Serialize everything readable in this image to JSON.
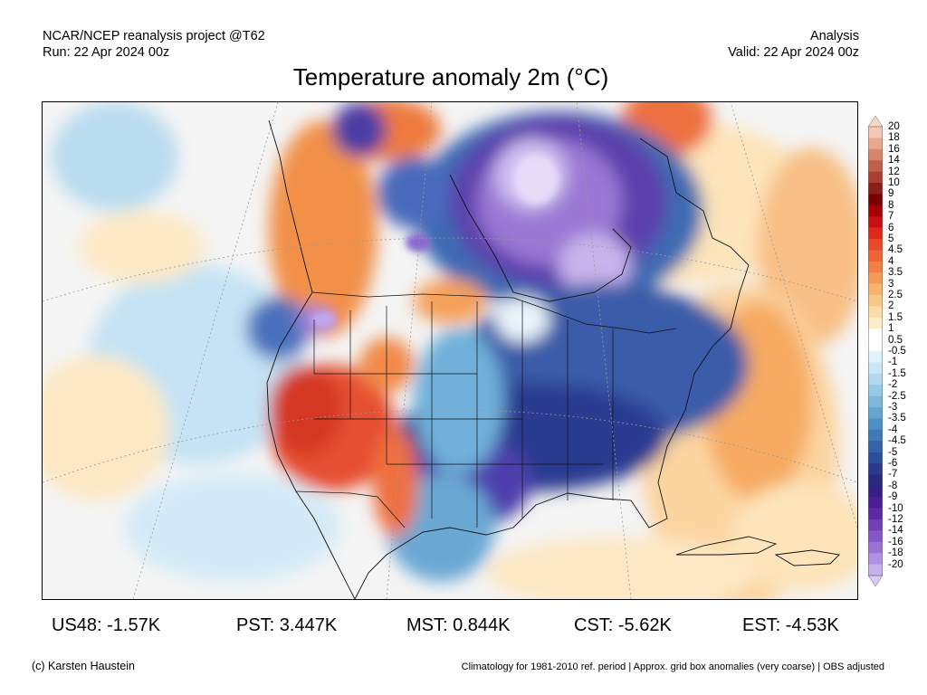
{
  "header": {
    "left_line1": "NCAR/NCEP reanalysis project @T62",
    "left_line2": "Run: 22 Apr 2024 00z",
    "right_line1": "Analysis",
    "right_line2": "Valid: 22 Apr 2024 00z"
  },
  "title": "Temperature anomaly 2m (°C)",
  "legend": {
    "labels": [
      "20",
      "18",
      "16",
      "14",
      "12",
      "10",
      "9",
      "8",
      "7",
      "6",
      "5",
      "4.5",
      "4",
      "3.5",
      "3",
      "2.5",
      "2",
      "1.5",
      "1",
      "0.5",
      "-0.5",
      "-1",
      "-1.5",
      "-2",
      "-2.5",
      "-3",
      "-3.5",
      "-4",
      "-4.5",
      "-5",
      "-6",
      "-7",
      "-8",
      "-9",
      "-10",
      "-12",
      "-14",
      "-16",
      "-18",
      "-20"
    ],
    "colors": [
      "#f4c6b4",
      "#e8a890",
      "#d4856c",
      "#c06048",
      "#a84030",
      "#8c2018",
      "#7a0000",
      "#a80000",
      "#c81010",
      "#dc2a1c",
      "#e8472a",
      "#ee6436",
      "#f28044",
      "#f59a56",
      "#f7b26c",
      "#f9c886",
      "#fbdca6",
      "#fcecc8",
      "#ffffff",
      "#ffffff",
      "#e0f2fb",
      "#c9e7f6",
      "#b0d9ef",
      "#96cae6",
      "#7bb8dc",
      "#62a5d1",
      "#4e90c4",
      "#3f79b7",
      "#3463aa",
      "#2c4f9c",
      "#2a3a8c",
      "#2a2a80",
      "#361e86",
      "#4a1f96",
      "#5c2aa6",
      "#7040b6",
      "#8458c6",
      "#9a72d4",
      "#b090e0",
      "#c8b0ec"
    ],
    "end_top_color": "#f8d7c8",
    "end_bottom_color": "#d8c8f4"
  },
  "stats": [
    {
      "label": "US48: -1.57K"
    },
    {
      "label": "PST: 3.447K"
    },
    {
      "label": "MST: 0.844K"
    },
    {
      "label": "CST: -5.62K"
    },
    {
      "label": "EST: -4.53K"
    }
  ],
  "footer": {
    "left": "(c) Karsten Haustein",
    "right": "Climatology for 1981-2010 ref. period | Approx. grid box anomalies (very coarse) | OBS adjusted"
  }
}
